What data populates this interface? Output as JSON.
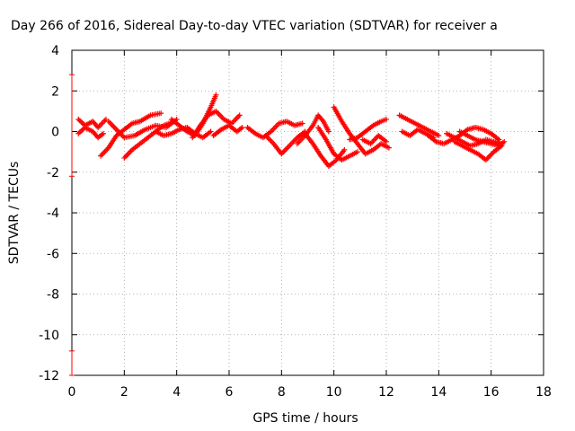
{
  "chart_data": {
    "type": "scatter",
    "title": "Day 266 of 2016, Sidereal Day-to-day VTEC variation (SDTVAR) for receiver a",
    "xlabel": "GPS time / hours",
    "ylabel": "SDTVAR / TECUs",
    "xlim": [
      0,
      18
    ],
    "ylim": [
      -12,
      4
    ],
    "xticks": [
      "0",
      "2",
      "4",
      "6",
      "8",
      "10",
      "12",
      "14",
      "16",
      "18"
    ],
    "yticks": [
      "4",
      "2",
      "0",
      "-2",
      "-4",
      "-6",
      "-8",
      "-10",
      "-12"
    ],
    "grid": true,
    "marker": "+",
    "color": "#ff0000",
    "tracks": [
      {
        "x": [
          0.25,
          0.5,
          0.8,
          1.0,
          1.3
        ],
        "y": [
          0.6,
          0.3,
          0.5,
          0.2,
          0.6
        ]
      },
      {
        "x": [
          0.25,
          0.5,
          0.8,
          1.0,
          1.2
        ],
        "y": [
          -0.1,
          0.2,
          0.0,
          -0.3,
          -0.1
        ]
      },
      {
        "x": [
          1.1,
          1.4,
          1.7,
          2.0,
          2.3,
          2.6,
          3.0,
          3.4
        ],
        "y": [
          -1.2,
          -0.8,
          -0.2,
          0.1,
          0.4,
          0.5,
          0.8,
          0.9
        ]
      },
      {
        "x": [
          1.4,
          1.7,
          2.0,
          2.4,
          2.8,
          3.2,
          3.6,
          4.0
        ],
        "y": [
          0.5,
          0.1,
          -0.3,
          -0.2,
          0.1,
          0.3,
          0.2,
          0.6
        ]
      },
      {
        "x": [
          2.0,
          2.3,
          2.7,
          3.1,
          3.5,
          3.9
        ],
        "y": [
          -1.3,
          -0.9,
          -0.5,
          -0.1,
          0.3,
          0.5
        ]
      },
      {
        "x": [
          3.8,
          4.1,
          4.4,
          4.7,
          5.0,
          5.3,
          5.5
        ],
        "y": [
          0.6,
          0.3,
          0.0,
          -0.2,
          0.4,
          1.2,
          1.8
        ]
      },
      {
        "x": [
          3.2,
          3.5,
          3.8,
          4.1,
          4.4,
          4.7,
          5.0,
          5.3
        ],
        "y": [
          0.0,
          -0.2,
          -0.1,
          0.1,
          0.2,
          -0.1,
          -0.3,
          0.0
        ]
      },
      {
        "x": [
          4.6,
          4.9,
          5.2,
          5.5,
          5.8,
          6.1,
          6.4
        ],
        "y": [
          -0.3,
          0.3,
          0.8,
          1.0,
          0.6,
          0.4,
          0.8
        ]
      },
      {
        "x": [
          5.4,
          5.7,
          6.0,
          6.3,
          6.5
        ],
        "y": [
          -0.2,
          0.1,
          0.3,
          0.0,
          0.2
        ]
      },
      {
        "x": [
          6.7,
          7.0,
          7.3,
          7.6,
          7.9,
          8.2,
          8.5,
          8.8
        ],
        "y": [
          0.2,
          -0.1,
          -0.3,
          0.0,
          0.4,
          0.5,
          0.3,
          0.4
        ]
      },
      {
        "x": [
          7.4,
          7.7,
          8.0,
          8.3,
          8.6,
          8.9
        ],
        "y": [
          -0.2,
          -0.6,
          -1.1,
          -0.7,
          -0.3,
          0.0
        ]
      },
      {
        "x": [
          8.6,
          8.9,
          9.2,
          9.4,
          9.6,
          9.8
        ],
        "y": [
          -0.6,
          -0.2,
          0.3,
          0.8,
          0.5,
          0.0
        ]
      },
      {
        "x": [
          8.9,
          9.2,
          9.5,
          9.8,
          10.1,
          10.4
        ],
        "y": [
          -0.1,
          -0.6,
          -1.2,
          -1.7,
          -1.4,
          -0.9
        ]
      },
      {
        "x": [
          9.4,
          9.7,
          10.0,
          10.3,
          10.6,
          10.9
        ],
        "y": [
          0.2,
          -0.4,
          -1.1,
          -1.4,
          -1.2,
          -1.0
        ]
      },
      {
        "x": [
          10.0,
          10.3,
          10.6,
          10.9,
          11.2,
          11.5,
          11.8,
          12.1
        ],
        "y": [
          1.2,
          0.5,
          -0.1,
          -0.6,
          -1.1,
          -0.9,
          -0.6,
          -0.8
        ]
      },
      {
        "x": [
          10.6,
          10.9,
          11.2,
          11.5,
          11.8,
          12.0
        ],
        "y": [
          -0.4,
          -0.3,
          0.0,
          0.3,
          0.5,
          0.6
        ]
      },
      {
        "x": [
          11.1,
          11.4,
          11.7,
          12.0
        ],
        "y": [
          -0.4,
          -0.6,
          -0.2,
          -0.5
        ]
      },
      {
        "x": [
          12.5,
          12.8,
          13.1,
          13.4,
          13.7,
          14.0
        ],
        "y": [
          0.8,
          0.6,
          0.4,
          0.2,
          0.0,
          -0.2
        ]
      },
      {
        "x": [
          12.6,
          12.9,
          13.2,
          13.5,
          13.8
        ],
        "y": [
          0.0,
          -0.2,
          0.1,
          -0.1,
          -0.3
        ]
      },
      {
        "x": [
          13.6,
          13.9,
          14.2,
          14.5,
          14.8,
          15.1,
          15.4,
          15.7,
          16.0,
          16.3
        ],
        "y": [
          -0.2,
          -0.5,
          -0.6,
          -0.4,
          -0.2,
          0.1,
          0.2,
          0.1,
          -0.1,
          -0.4
        ]
      },
      {
        "x": [
          14.3,
          14.6,
          14.9,
          15.2,
          15.5,
          15.8,
          16.1,
          16.4
        ],
        "y": [
          -0.1,
          -0.3,
          -0.5,
          -0.7,
          -0.6,
          -0.4,
          -0.5,
          -0.6
        ]
      },
      {
        "x": [
          14.6,
          14.9,
          15.2,
          15.5,
          15.8,
          16.1,
          16.4
        ],
        "y": [
          -0.5,
          -0.7,
          -0.9,
          -1.1,
          -1.4,
          -1.0,
          -0.7
        ]
      },
      {
        "x": [
          14.8,
          15.1,
          15.4,
          15.7,
          16.0,
          16.3,
          16.5
        ],
        "y": [
          0.0,
          -0.2,
          -0.4,
          -0.5,
          -0.6,
          -0.7,
          -0.5
        ]
      }
    ],
    "errorbars": [
      {
        "x": 0,
        "y_low": -2.2,
        "y_high": 2.8
      },
      {
        "x": 0,
        "y_low": -12.0,
        "y_high": -10.8
      }
    ]
  }
}
